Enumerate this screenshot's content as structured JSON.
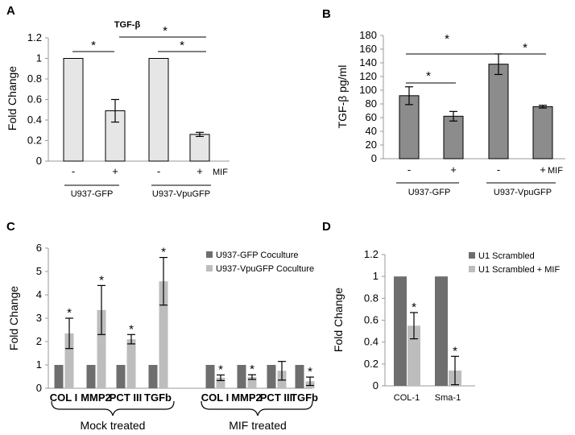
{
  "chart_data": [
    {
      "panel": "A",
      "type": "bar",
      "title": "TGF-β",
      "ylabel": "Fold Change",
      "ylim": [
        0,
        1.2
      ],
      "yticks": [
        "0",
        "0.2",
        "0.4",
        "0.6",
        "0.8",
        "1",
        "1.2"
      ],
      "categories": [
        "-",
        "+",
        "-",
        "+"
      ],
      "treatment_label": "MIF",
      "groups": [
        "U937-GFP",
        "U937-VpuGFP"
      ],
      "values": [
        1.0,
        0.49,
        1.0,
        0.26
      ],
      "errors": [
        0,
        0.11,
        0,
        0.02
      ],
      "bar_color": "#e6e6e6",
      "stars": [
        "*",
        "*",
        "*"
      ]
    },
    {
      "panel": "B",
      "type": "bar",
      "ylabel": "TGF-β pg/ml",
      "ylim": [
        0,
        180
      ],
      "yticks": [
        "0",
        "20",
        "40",
        "60",
        "80",
        "100",
        "120",
        "140",
        "160",
        "180"
      ],
      "categories": [
        "-",
        "+",
        "-",
        "+"
      ],
      "treatment_label": "MIF",
      "groups": [
        "U937-GFP",
        "U937-VpuGFP"
      ],
      "values": [
        92,
        62,
        138,
        76
      ],
      "errors": [
        13,
        7,
        15,
        2
      ],
      "bar_color": "#8c8c8c",
      "stars": [
        "*",
        "*",
        "*"
      ]
    },
    {
      "panel": "C",
      "type": "bar",
      "ylabel": "Fold Change",
      "ylim": [
        0,
        6
      ],
      "yticks": [
        "0",
        "1",
        "2",
        "3",
        "4",
        "5",
        "6"
      ],
      "categories": [
        "COL I",
        "MMP2",
        "PCT III",
        "TGFb",
        "COL I",
        "MMP2",
        "PCT III",
        "TGFb"
      ],
      "groups": [
        "Mock treated",
        "MIF treated"
      ],
      "series": [
        {
          "name": "U937-GFP Coculture",
          "color": "#6e6e6e",
          "values": [
            1,
            1,
            1,
            1,
            1,
            1,
            1,
            1
          ],
          "errors": [
            0,
            0,
            0,
            0,
            0,
            0,
            0,
            0
          ]
        },
        {
          "name": "U937-VpuGFP Coculture",
          "color": "#bdbdbd",
          "values": [
            2.35,
            3.35,
            2.1,
            4.58,
            0.45,
            0.48,
            0.75,
            0.3
          ],
          "errors": [
            0.65,
            1.05,
            0.2,
            1.02,
            0.12,
            0.1,
            0.4,
            0.18
          ]
        }
      ],
      "stars": [
        "*",
        "*",
        "*",
        "*",
        "*",
        "*",
        "*"
      ]
    },
    {
      "panel": "D",
      "type": "bar",
      "ylabel": "Fold Change",
      "ylim": [
        0,
        1.2
      ],
      "yticks": [
        "0",
        "0.2",
        "0.4",
        "0.6",
        "0.8",
        "1",
        "1.2"
      ],
      "categories": [
        "COL-1",
        "Sma-1"
      ],
      "series": [
        {
          "name": "U1 Scrambled",
          "color": "#6e6e6e",
          "values": [
            1,
            1
          ],
          "errors": [
            0,
            0
          ]
        },
        {
          "name": "U1 Scrambled + MIF",
          "color": "#bdbdbd",
          "values": [
            0.55,
            0.14
          ],
          "errors": [
            0.12,
            0.13
          ]
        }
      ],
      "stars": [
        "*",
        "*"
      ]
    }
  ]
}
